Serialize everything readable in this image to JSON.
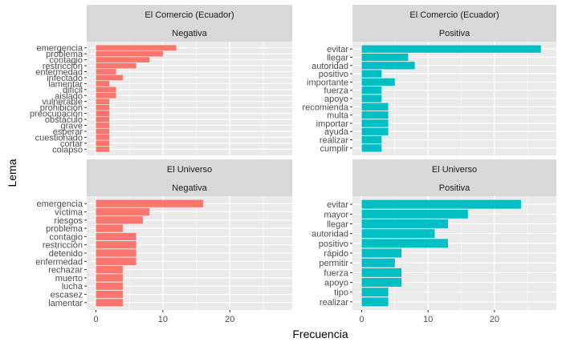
{
  "xlabel": "Frecuencia",
  "ylabel": "Lema",
  "colors": {
    "negativa": "#F8766D",
    "positiva": "#00BFC4",
    "panel_bg": "#EBEBEB",
    "strip_bg": "#D9D9D9",
    "grid": "#FFFFFF"
  },
  "chart_data": [
    {
      "type": "bar",
      "orientation": "horizontal",
      "facet_row": "El Comercio (Ecuador)",
      "facet_col": "Negativa",
      "color": "#F8766D",
      "xlim": [
        0,
        28
      ],
      "xticks": [
        0,
        10,
        20
      ],
      "categories": [
        "emergencia",
        "problema",
        "contagio",
        "restricción",
        "enfermedad",
        "infectado",
        "lamentar",
        "difícil",
        "aislado",
        "vulnerable",
        "prohibición",
        "preocupación",
        "obstáculo",
        "grave",
        "esperar",
        "cuestionado",
        "cortar",
        "colapso"
      ],
      "values": [
        12,
        10,
        8,
        6,
        3,
        4,
        2,
        3,
        3,
        2,
        2,
        2,
        2,
        2,
        2,
        2,
        2,
        2
      ]
    },
    {
      "type": "bar",
      "orientation": "horizontal",
      "facet_row": "El Comercio (Ecuador)",
      "facet_col": "Positiva",
      "color": "#00BFC4",
      "xlim": [
        0,
        28
      ],
      "xticks": [
        0,
        10,
        20
      ],
      "categories": [
        "evitar",
        "llegar",
        "autoridad",
        "positivo",
        "importante",
        "fuerza",
        "apoyo",
        "recomienda",
        "multa",
        "importar",
        "ayuda",
        "realizar",
        "cumplir"
      ],
      "values": [
        27,
        7,
        8,
        3,
        5,
        3,
        3,
        4,
        4,
        4,
        4,
        3,
        3
      ]
    },
    {
      "type": "bar",
      "orientation": "horizontal",
      "facet_row": "El Universo",
      "facet_col": "Negativa",
      "color": "#F8766D",
      "xlim": [
        0,
        28
      ],
      "xticks": [
        0,
        10,
        20
      ],
      "categories": [
        "emergencia",
        "víctima",
        "riesgos",
        "problema",
        "contagio",
        "restricción",
        "detenido",
        "enfermedad",
        "rechazar",
        "muerto",
        "lucha",
        "escasez",
        "lamentar"
      ],
      "values": [
        16,
        8,
        7,
        4,
        6,
        6,
        6,
        6,
        4,
        4,
        4,
        4,
        4
      ]
    },
    {
      "type": "bar",
      "orientation": "horizontal",
      "facet_row": "El Universo",
      "facet_col": "Positiva",
      "color": "#00BFC4",
      "xlim": [
        0,
        28
      ],
      "xticks": [
        0,
        10,
        20
      ],
      "categories": [
        "evitar",
        "mayor",
        "llegar",
        "autoridad",
        "positivo",
        "rápido",
        "permitir",
        "fuerza",
        "apoyo",
        "tipo",
        "realizar"
      ],
      "values": [
        24,
        16,
        13,
        11,
        13,
        6,
        5,
        6,
        6,
        4,
        4
      ]
    }
  ]
}
